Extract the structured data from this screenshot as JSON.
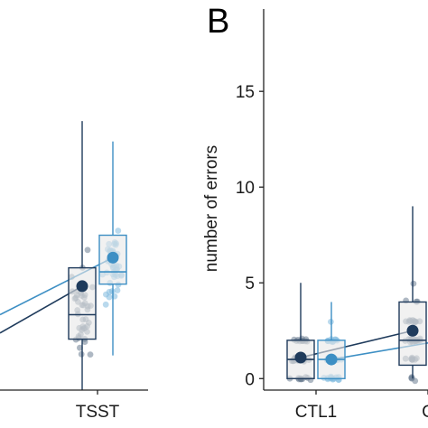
{
  "chart_data": [
    {
      "type": "box",
      "panel": "",
      "categories": [
        "",
        "TSST"
      ],
      "ylim": [
        -1.2,
        17.5
      ],
      "series": [
        {
          "color": "#1f3b5c",
          "points": [
            {
              "x": "TSST",
              "q1": 1.3,
              "median": 2.5,
              "q3": 4.8,
              "low": -1.2,
              "high": 12.0,
              "mean": 3.9
            }
          ]
        },
        {
          "color": "#3d8fc4",
          "points": [
            {
              "x": "TSST",
              "q1": 4.0,
              "median": 4.6,
              "q3": 6.4,
              "low": 0.5,
              "high": 11.0,
              "mean": 5.3
            }
          ]
        }
      ],
      "trend_lines": [
        {
          "color": "#1f3b5c",
          "from": 1.6,
          "to": 3.9
        },
        {
          "color": "#3d8fc4",
          "from": 2.5,
          "to": 5.3
        }
      ]
    },
    {
      "type": "box",
      "panel": "B",
      "categories": [
        "CTL1",
        "C"
      ],
      "ylabel": "number of errors",
      "yticks": [
        0,
        5,
        10,
        15
      ],
      "ylim": [
        -0.6,
        19.3
      ],
      "series": [
        {
          "color": "#1f3b5c",
          "points": [
            {
              "x": "CTL1",
              "q1": 0,
              "median": 1,
              "q3": 2,
              "low": 0,
              "high": 5,
              "mean": 1.1
            },
            {
              "x": "C",
              "q1": 0.7,
              "median": 2,
              "q3": 4,
              "low": 0,
              "high": 9,
              "mean": 2.5
            }
          ]
        },
        {
          "color": "#3d8fc4",
          "points": [
            {
              "x": "CTL1",
              "q1": 0,
              "median": 1,
              "q3": 2,
              "low": 0,
              "high": 4,
              "mean": 1.0
            },
            {
              "x": "C",
              "q1": 0.5,
              "median": 1.5,
              "q3": 3,
              "low": 0,
              "high": 8,
              "mean": 2.0
            }
          ]
        }
      ]
    }
  ]
}
